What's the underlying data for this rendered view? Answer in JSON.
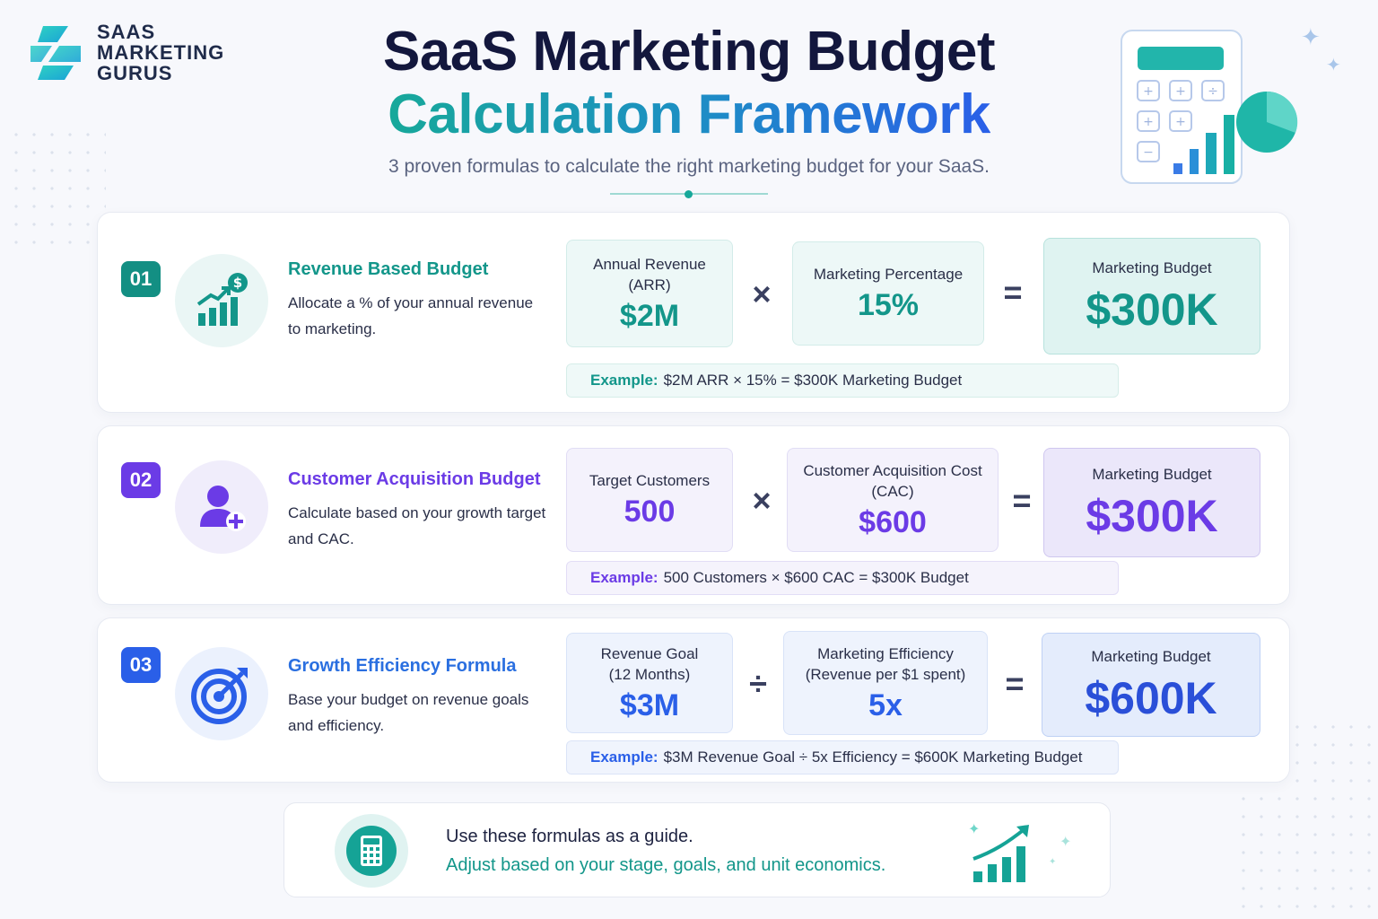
{
  "brand": {
    "logo_lines": [
      "SAAS",
      "MARKETING",
      "GURUS"
    ]
  },
  "header": {
    "title_line1": "SaaS Marketing Budget",
    "title_line2": "Calculation Framework",
    "subtitle": "3 proven formulas to calculate the right marketing budget for your SaaS."
  },
  "colors": {
    "teal": "#13968a",
    "purple": "#6b3be6",
    "blue": "#2a5fe8",
    "navy": "#13173d"
  },
  "formulas": [
    {
      "number": "01",
      "icon": "revenue-chart-dollar-icon",
      "title": "Revenue Based Budget",
      "description": "Allocate a % of your annual revenue to marketing.",
      "input1_label": "Annual Revenue (ARR)",
      "input1_value": "$2M",
      "operator": "×",
      "input2_label": "Marketing Percentage",
      "input2_value": "15%",
      "equals": "=",
      "result_label": "Marketing Budget",
      "result_value": "$300K",
      "example_label": "Example:",
      "example_text": "$2M ARR × 15% = $300K Marketing Budget"
    },
    {
      "number": "02",
      "icon": "add-user-icon",
      "title": "Customer Acquisition Budget",
      "description": "Calculate based on your growth target and CAC.",
      "input1_label": "Target Customers",
      "input1_value": "500",
      "operator": "×",
      "input2_label": "Customer Acquisition Cost (CAC)",
      "input2_value": "$600",
      "equals": "=",
      "result_label": "Marketing Budget",
      "result_value": "$300K",
      "example_label": "Example:",
      "example_text": "500 Customers × $600 CAC = $300K Budget"
    },
    {
      "number": "03",
      "icon": "target-icon",
      "title": "Growth Efficiency Formula",
      "description": "Base your budget on revenue goals and efficiency.",
      "input1_label": "Revenue Goal (12 Months)",
      "input1_value": "$3M",
      "operator": "÷",
      "input2_label": "Marketing Efficiency (Revenue per $1 spent)",
      "input2_value": "5x",
      "equals": "=",
      "result_label": "Marketing Budget",
      "result_value": "$600K",
      "example_label": "Example:",
      "example_text": "$3M Revenue Goal ÷ 5x Efficiency = $600K Marketing Budget"
    }
  ],
  "footer": {
    "line1": "Use these formulas as a guide.",
    "line2": "Adjust based on your stage, goals, and unit economics.",
    "icon": "calculator-icon",
    "decor_icon": "growth-chart-icon"
  }
}
